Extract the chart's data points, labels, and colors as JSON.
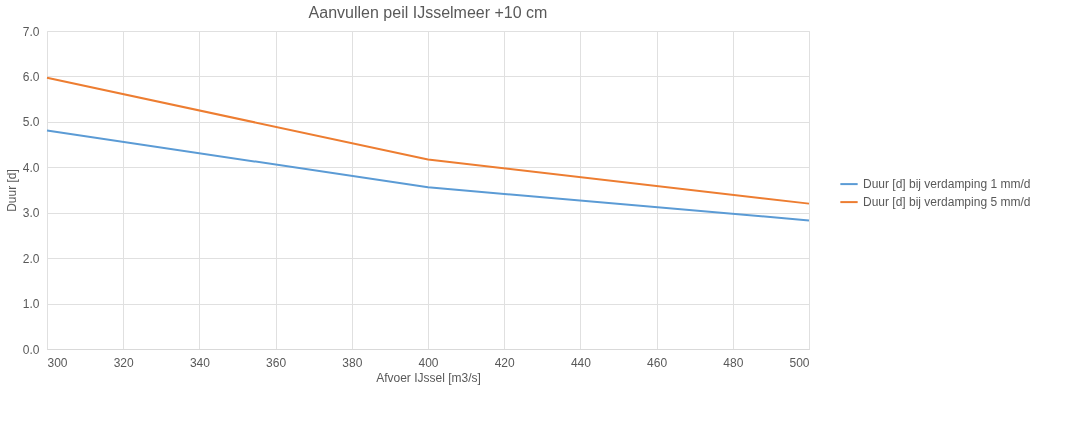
{
  "chart_data": {
    "type": "line",
    "title": "Aanvullen peil IJsselmeer +10 cm",
    "xlabel": "Afvoer IJssel [m3/s]",
    "ylabel": "Duur [d]",
    "x": [
      300,
      400,
      500
    ],
    "series": [
      {
        "name": "Duur [d] bij verdamping 1 mm/d",
        "color": "#5b9bd5",
        "values": [
          4.81,
          3.56,
          2.83
        ]
      },
      {
        "name": "Duur [d] bij verdamping 5 mm/d",
        "color": "#ed7d31",
        "values": [
          5.97,
          4.17,
          3.2
        ]
      }
    ],
    "xlim": [
      300,
      500
    ],
    "xticks": [
      300,
      320,
      340,
      360,
      380,
      400,
      420,
      440,
      460,
      480,
      500
    ],
    "ylim": [
      0,
      7
    ],
    "yticks": [
      {
        "value": 0,
        "label": "0.0"
      },
      {
        "value": 1,
        "label": "1.0"
      },
      {
        "value": 2,
        "label": "2.0"
      },
      {
        "value": 3,
        "label": "3.0"
      },
      {
        "value": 4,
        "label": "4.0"
      },
      {
        "value": 5,
        "label": "5.0"
      },
      {
        "value": 6,
        "label": "6.0"
      },
      {
        "value": 7,
        "label": "7.0"
      }
    ],
    "grid": true,
    "legend": "right",
    "marker": "none",
    "line_style": "solid"
  }
}
